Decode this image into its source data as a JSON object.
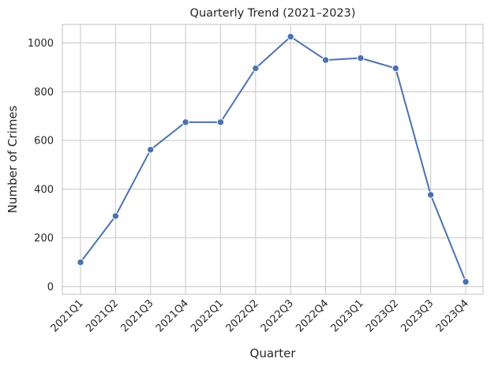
{
  "chart_data": {
    "type": "line",
    "title": "Quarterly Trend (2021–2023)",
    "xlabel": "Quarter",
    "ylabel": "Number of Crimes",
    "categories": [
      "2021Q1",
      "2021Q2",
      "2021Q3",
      "2021Q4",
      "2022Q1",
      "2022Q2",
      "2022Q3",
      "2022Q4",
      "2023Q1",
      "2023Q2",
      "2023Q3",
      "2023Q4"
    ],
    "series": [
      {
        "values": [
          100,
          290,
          562,
          675,
          675,
          896,
          1026,
          930,
          938,
          896,
          377,
          20
        ]
      }
    ],
    "y_ticks": [
      0,
      200,
      400,
      600,
      800,
      1000
    ],
    "ylim": [
      -31,
      1076
    ],
    "grid": true,
    "colors": {
      "line": "#4c72b0",
      "grid": "#cccccc",
      "axis_frame": "#cccccc",
      "text": "#262626"
    }
  }
}
